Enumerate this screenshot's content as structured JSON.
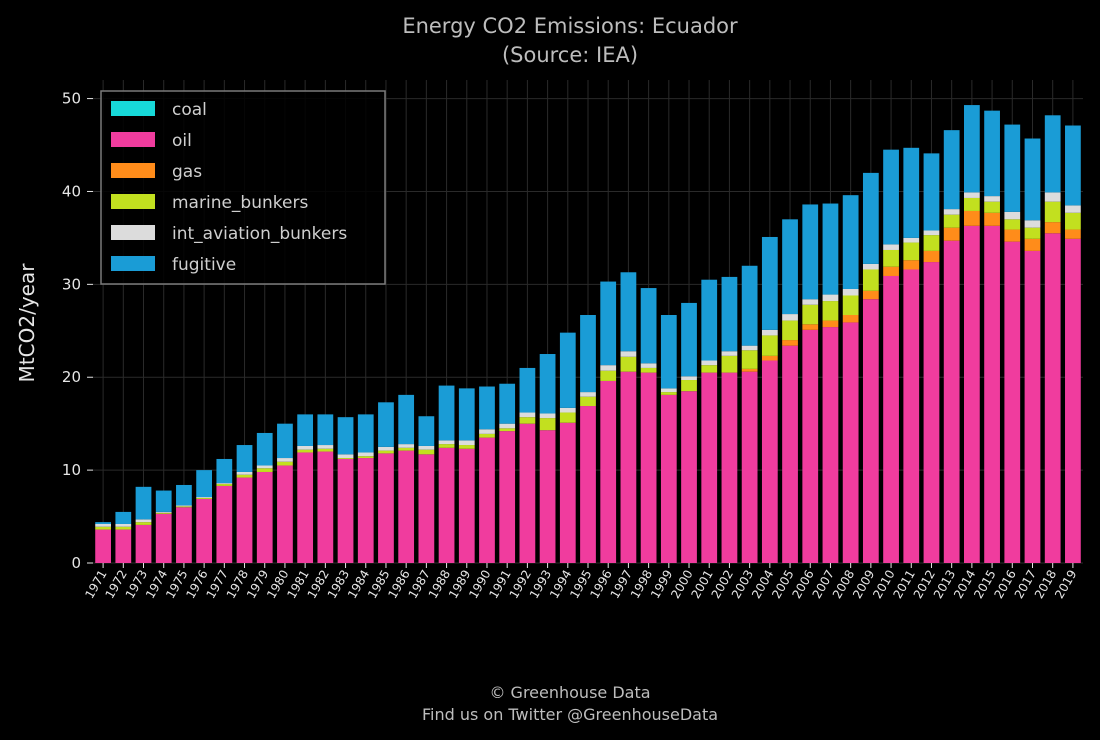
{
  "chart_data": {
    "type": "bar",
    "stacked": true,
    "title": "Energy CO2 Emissions: Ecuador",
    "subtitle": "(Source: IEA)",
    "xlabel": "",
    "ylabel": "MtCO2/year",
    "ylim": [
      0,
      52
    ],
    "yticks": [
      0,
      10,
      20,
      30,
      40,
      50
    ],
    "grid": true,
    "legend_position": "top-left",
    "categories": [
      "1971",
      "1972",
      "1973",
      "1974",
      "1975",
      "1976",
      "1977",
      "1978",
      "1979",
      "1980",
      "1981",
      "1982",
      "1983",
      "1984",
      "1985",
      "1986",
      "1987",
      "1988",
      "1989",
      "1990",
      "1991",
      "1992",
      "1993",
      "1994",
      "1995",
      "1996",
      "1997",
      "1998",
      "1999",
      "2000",
      "2001",
      "2002",
      "2003",
      "2004",
      "2005",
      "2006",
      "2007",
      "2008",
      "2009",
      "2010",
      "2011",
      "2012",
      "2013",
      "2014",
      "2015",
      "2016",
      "2017",
      "2018",
      "2019"
    ],
    "series": [
      {
        "name": "coal",
        "color": "#17d9d9",
        "values": [
          0,
          0,
          0,
          0,
          0,
          0,
          0,
          0,
          0,
          0,
          0,
          0,
          0,
          0,
          0,
          0,
          0,
          0,
          0,
          0,
          0,
          0,
          0,
          0,
          0,
          0,
          0,
          0,
          0,
          0,
          0,
          0,
          0,
          0,
          0,
          0,
          0,
          0,
          0,
          0,
          0,
          0,
          0,
          0,
          0,
          0,
          0,
          0,
          0
        ]
      },
      {
        "name": "oil",
        "color": "#f03c9e",
        "values": [
          3.6,
          3.6,
          4.1,
          5.3,
          6.0,
          6.9,
          8.3,
          9.2,
          9.8,
          10.5,
          11.9,
          12.0,
          11.2,
          11.3,
          11.8,
          12.1,
          11.7,
          12.4,
          12.3,
          13.5,
          14.2,
          15.0,
          14.3,
          15.1,
          16.9,
          19.6,
          20.6,
          20.5,
          18.1,
          18.5,
          20.5,
          20.5,
          20.6,
          21.8,
          23.4,
          25.1,
          25.4,
          25.9,
          28.4,
          30.9,
          31.6,
          32.4,
          34.7,
          36.3,
          36.3,
          34.6,
          33.6,
          35.5,
          34.9
        ]
      },
      {
        "name": "gas",
        "color": "#ff8c1a",
        "values": [
          0,
          0,
          0,
          0,
          0,
          0,
          0,
          0,
          0,
          0,
          0,
          0,
          0,
          0,
          0,
          0,
          0,
          0,
          0,
          0,
          0,
          0,
          0,
          0,
          0,
          0,
          0,
          0,
          0,
          0,
          0,
          0,
          0.3,
          0.5,
          0.6,
          0.6,
          0.7,
          0.8,
          0.9,
          1.0,
          1.0,
          1.2,
          1.4,
          1.6,
          1.4,
          1.3,
          1.3,
          1.2,
          1.0
        ]
      },
      {
        "name": "marine_bunkers",
        "color": "#c2e01f",
        "values": [
          0.3,
          0.3,
          0.3,
          0.1,
          0.1,
          0.1,
          0.2,
          0.3,
          0.4,
          0.4,
          0.3,
          0.3,
          0.1,
          0.2,
          0.3,
          0.3,
          0.5,
          0.4,
          0.4,
          0.4,
          0.3,
          0.7,
          1.3,
          1.1,
          1.0,
          1.1,
          1.6,
          0.5,
          0.3,
          1.2,
          0.8,
          1.8,
          2.0,
          2.2,
          2.1,
          2.1,
          2.1,
          2.1,
          2.3,
          1.8,
          1.9,
          1.7,
          1.4,
          1.4,
          1.2,
          1.1,
          1.2,
          2.2,
          1.8
        ]
      },
      {
        "name": "int_aviation_bunkers",
        "color": "#dcdcdc",
        "values": [
          0.3,
          0.3,
          0.3,
          0.1,
          0.1,
          0.1,
          0.1,
          0.3,
          0.3,
          0.4,
          0.4,
          0.4,
          0.4,
          0.4,
          0.4,
          0.4,
          0.4,
          0.4,
          0.5,
          0.5,
          0.5,
          0.5,
          0.5,
          0.5,
          0.5,
          0.6,
          0.6,
          0.5,
          0.4,
          0.4,
          0.5,
          0.5,
          0.5,
          0.6,
          0.7,
          0.6,
          0.7,
          0.7,
          0.6,
          0.6,
          0.5,
          0.5,
          0.6,
          0.6,
          0.6,
          0.8,
          0.8,
          1.0,
          0.8
        ]
      },
      {
        "name": "fugitive",
        "color": "#1a9cd6",
        "values": [
          0.2,
          1.3,
          3.5,
          2.3,
          2.2,
          2.9,
          2.6,
          2.9,
          3.5,
          3.7,
          3.4,
          3.3,
          4.0,
          4.1,
          4.8,
          5.3,
          3.2,
          5.9,
          5.6,
          4.6,
          4.3,
          4.8,
          6.4,
          8.1,
          8.3,
          9.0,
          8.5,
          8.1,
          7.9,
          7.9,
          8.7,
          8.0,
          8.6,
          10.0,
          10.2,
          10.2,
          9.8,
          10.1,
          9.8,
          10.2,
          9.7,
          8.3,
          8.5,
          9.4,
          9.2,
          9.4,
          8.8,
          8.3,
          8.6
        ]
      }
    ]
  },
  "footer": {
    "line1": "© Greenhouse Data",
    "line2": "Find us on Twitter @GreenhouseData"
  },
  "colors": {
    "background": "#000000",
    "grid": "#2a2a2a",
    "axis_text": "#e6e6e6",
    "title_text": "#bdbdbd",
    "legend_border": "#7a7a7a"
  }
}
